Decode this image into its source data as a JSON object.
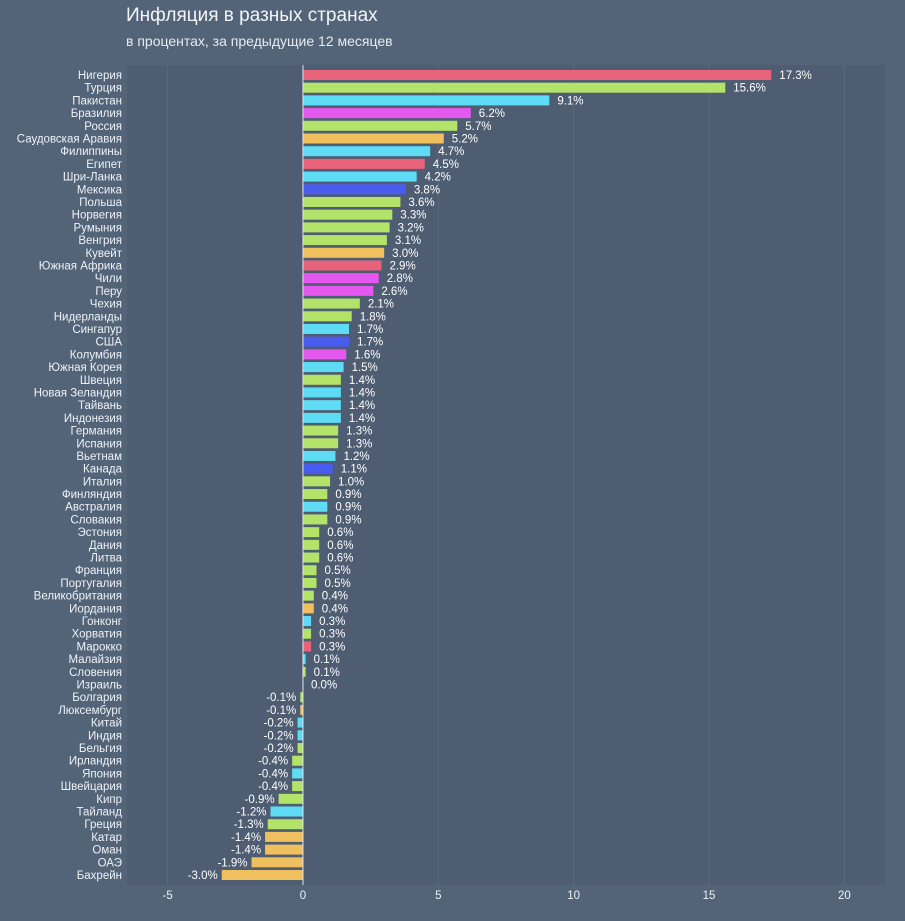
{
  "chart_data": {
    "type": "bar",
    "orientation": "horizontal",
    "title": "Инфляция в разных странах",
    "subtitle": "в процентах, за предыдущие 12 месяцев",
    "xlabel": "",
    "ylabel": "",
    "xlim": [
      -6.5,
      21.5
    ],
    "xticks": [
      -5,
      0,
      5,
      10,
      15,
      20
    ],
    "grid": true,
    "legend": "none",
    "value_suffix": "%",
    "colors": {
      "red": "#e8637a",
      "green": "#b4e36a",
      "cyan": "#5fdcf5",
      "magenta": "#e458f0",
      "orange": "#f0c05e",
      "blue": "#4a5cf0"
    },
    "categories": [
      "Нигерия",
      "Турция",
      "Пакистан",
      "Бразилия",
      "Россия",
      "Саудовская Аравия",
      "Филиппины",
      "Египет",
      "Шри-Ланка",
      "Мексика",
      "Польша",
      "Норвегия",
      "Румыния",
      "Венгрия",
      "Кувейт",
      "Южная Африка",
      "Чили",
      "Перу",
      "Чехия",
      "Нидерланды",
      "Сингапур",
      "США",
      "Колумбия",
      "Южная Корея",
      "Швеция",
      "Новая Зеландия",
      "Тайвань",
      "Индонезия",
      "Германия",
      "Испания",
      "Вьетнам",
      "Канада",
      "Италия",
      "Финляндия",
      "Австралия",
      "Словакия",
      "Эстония",
      "Дания",
      "Литва",
      "Франция",
      "Португалия",
      "Великобритания",
      "Иордания",
      "Гонконг",
      "Хорватия",
      "Марокко",
      "Малайзия",
      "Словения",
      "Израиль",
      "Болгария",
      "Люксембург",
      "Китай",
      "Индия",
      "Бельгия",
      "Ирландия",
      "Япония",
      "Швейцария",
      "Кипр",
      "Тайланд",
      "Греция",
      "Катар",
      "Оман",
      "ОАЭ",
      "Бахрейн"
    ],
    "values": [
      17.3,
      15.6,
      9.1,
      6.2,
      5.7,
      5.2,
      4.7,
      4.5,
      4.2,
      3.8,
      3.6,
      3.3,
      3.2,
      3.1,
      3.0,
      2.9,
      2.8,
      2.6,
      2.1,
      1.8,
      1.7,
      1.7,
      1.6,
      1.5,
      1.4,
      1.4,
      1.4,
      1.4,
      1.3,
      1.3,
      1.2,
      1.1,
      1.0,
      0.9,
      0.9,
      0.9,
      0.6,
      0.6,
      0.6,
      0.5,
      0.5,
      0.4,
      0.4,
      0.3,
      0.3,
      0.3,
      0.1,
      0.1,
      0.0,
      -0.1,
      -0.1,
      -0.2,
      -0.2,
      -0.2,
      -0.4,
      -0.4,
      -0.4,
      -0.9,
      -1.2,
      -1.3,
      -1.4,
      -1.4,
      -1.9,
      -3.0
    ],
    "value_labels": [
      "17.3%",
      "15.6%",
      "9.1%",
      "6.2%",
      "5.7%",
      "5.2%",
      "4.7%",
      "4.5%",
      "4.2%",
      "3.8%",
      "3.6%",
      "3.3%",
      "3.2%",
      "3.1%",
      "3.0%",
      "2.9%",
      "2.8%",
      "2.6%",
      "2.1%",
      "1.8%",
      "1.7%",
      "1.7%",
      "1.6%",
      "1.5%",
      "1.4%",
      "1.4%",
      "1.4%",
      "1.4%",
      "1.3%",
      "1.3%",
      "1.2%",
      "1.1%",
      "1.0%",
      "0.9%",
      "0.9%",
      "0.9%",
      "0.6%",
      "0.6%",
      "0.6%",
      "0.5%",
      "0.5%",
      "0.4%",
      "0.4%",
      "0.3%",
      "0.3%",
      "0.3%",
      "0.1%",
      "0.1%",
      "0.0%",
      "-0.1%",
      "-0.1%",
      "-0.2%",
      "-0.2%",
      "-0.2%",
      "-0.4%",
      "-0.4%",
      "-0.4%",
      "-0.9%",
      "-1.2%",
      "-1.3%",
      "-1.4%",
      "-1.4%",
      "-1.9%",
      "-3.0%"
    ],
    "bar_colors": [
      "red",
      "green",
      "cyan",
      "magenta",
      "green",
      "orange",
      "cyan",
      "red",
      "cyan",
      "blue",
      "green",
      "green",
      "green",
      "green",
      "orange",
      "red",
      "magenta",
      "magenta",
      "green",
      "green",
      "cyan",
      "blue",
      "magenta",
      "cyan",
      "green",
      "cyan",
      "cyan",
      "cyan",
      "green",
      "green",
      "cyan",
      "blue",
      "green",
      "green",
      "cyan",
      "green",
      "green",
      "green",
      "green",
      "green",
      "green",
      "green",
      "orange",
      "cyan",
      "green",
      "red",
      "cyan",
      "green",
      "green",
      "green",
      "orange",
      "cyan",
      "cyan",
      "green",
      "green",
      "cyan",
      "green",
      "green",
      "cyan",
      "green",
      "orange",
      "orange",
      "orange",
      "orange"
    ]
  }
}
